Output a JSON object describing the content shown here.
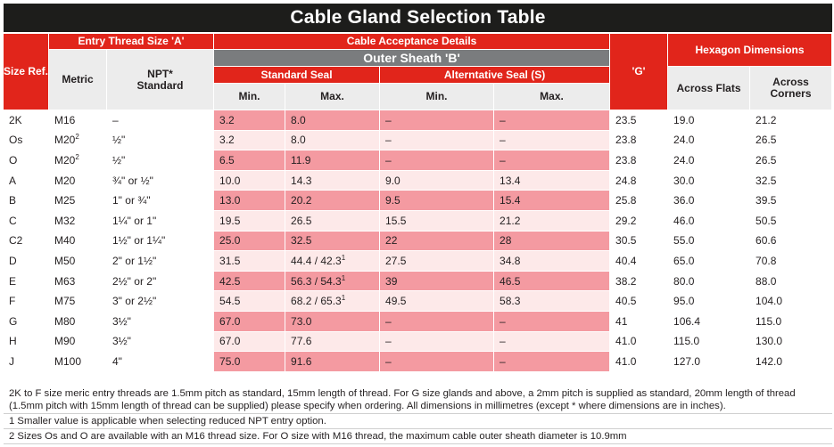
{
  "title": "Cable Gland Selection Table",
  "headers": {
    "size_ref": "Size Ref.",
    "entry_thread": "Entry Thread Size 'A'",
    "metric": "Metric",
    "npt": "NPT*",
    "npt_sub": "Standard",
    "cable_acceptance": "Cable Acceptance Details",
    "outer_sheath": "Outer Sheath 'B'",
    "standard_seal": "Standard Seal",
    "alternative_seal": "Alterntative Seal (S)",
    "min": "Min.",
    "max": "Max.",
    "g": "'G'",
    "hexagon": "Hexagon Dimensions",
    "across_flats": "Across Flats",
    "across_corners": "Across",
    "across_corners_2": "Corners"
  },
  "rows": [
    {
      "size": "2K",
      "metric": "M16",
      "metric_sup": "",
      "npt": "–",
      "std_min": "3.2",
      "std_max": "8.0",
      "std_max_sup": "",
      "alt_min": "–",
      "alt_max": "–",
      "g": "23.5",
      "af": "19.0",
      "ac": "21.2"
    },
    {
      "size": "Os",
      "metric": "M20",
      "metric_sup": "2",
      "npt": "½\"",
      "std_min": "3.2",
      "std_max": "8.0",
      "std_max_sup": "",
      "alt_min": "–",
      "alt_max": "–",
      "g": "23.8",
      "af": "24.0",
      "ac": "26.5"
    },
    {
      "size": "O",
      "metric": "M20",
      "metric_sup": "2",
      "npt": "½\"",
      "std_min": "6.5",
      "std_max": "11.9",
      "std_max_sup": "",
      "alt_min": "–",
      "alt_max": "–",
      "g": "23.8",
      "af": "24.0",
      "ac": "26.5"
    },
    {
      "size": "A",
      "metric": "M20",
      "metric_sup": "",
      "npt": "¾\" or ½\"",
      "std_min": "10.0",
      "std_max": "14.3",
      "std_max_sup": "",
      "alt_min": "9.0",
      "alt_max": "13.4",
      "g": "24.8",
      "af": "30.0",
      "ac": "32.5"
    },
    {
      "size": "B",
      "metric": "M25",
      "metric_sup": "",
      "npt": "1\" or ¾\"",
      "std_min": "13.0",
      "std_max": "20.2",
      "std_max_sup": "",
      "alt_min": "9.5",
      "alt_max": "15.4",
      "g": "25.8",
      "af": "36.0",
      "ac": "39.5"
    },
    {
      "size": "C",
      "metric": "M32",
      "metric_sup": "",
      "npt": "1¼\" or 1\"",
      "std_min": "19.5",
      "std_max": "26.5",
      "std_max_sup": "",
      "alt_min": "15.5",
      "alt_max": "21.2",
      "g": "29.2",
      "af": "46.0",
      "ac": "50.5"
    },
    {
      "size": "C2",
      "metric": "M40",
      "metric_sup": "",
      "npt": "1½\" or 1¼\"",
      "std_min": "25.0",
      "std_max": "32.5",
      "std_max_sup": "",
      "alt_min": "22",
      "alt_max": "28",
      "g": "30.5",
      "af": "55.0",
      "ac": "60.6"
    },
    {
      "size": "D",
      "metric": "M50",
      "metric_sup": "",
      "npt": "2\" or 1½\"",
      "std_min": "31.5",
      "std_max": "44.4 / 42.3",
      "std_max_sup": "1",
      "alt_min": "27.5",
      "alt_max": "34.8",
      "g": "40.4",
      "af": "65.0",
      "ac": "70.8"
    },
    {
      "size": "E",
      "metric": "M63",
      "metric_sup": "",
      "npt": "2½\" or 2\"",
      "std_min": "42.5",
      "std_max": "56.3 / 54.3",
      "std_max_sup": "1",
      "alt_min": "39",
      "alt_max": "46.5",
      "g": "38.2",
      "af": "80.0",
      "ac": "88.0"
    },
    {
      "size": "F",
      "metric": "M75",
      "metric_sup": "",
      "npt": "3\" or 2½\"",
      "std_min": "54.5",
      "std_max": "68.2 / 65.3",
      "std_max_sup": "1",
      "alt_min": "49.5",
      "alt_max": "58.3",
      "g": "40.5",
      "af": "95.0",
      "ac": "104.0"
    },
    {
      "size": "G",
      "metric": "M80",
      "metric_sup": "",
      "npt": "3½\"",
      "std_min": "67.0",
      "std_max": "73.0",
      "std_max_sup": "",
      "alt_min": "–",
      "alt_max": "–",
      "g": "41",
      "af": "106.4",
      "ac": "115.0"
    },
    {
      "size": "H",
      "metric": "M90",
      "metric_sup": "",
      "npt": "3½\"",
      "std_min": "67.0",
      "std_max": "77.6",
      "std_max_sup": "",
      "alt_min": "–",
      "alt_max": "–",
      "g": "41.0",
      "af": "115.0",
      "ac": "130.0"
    },
    {
      "size": "J",
      "metric": "M100",
      "metric_sup": "",
      "npt": "4\"",
      "std_min": "75.0",
      "std_max": "91.6",
      "std_max_sup": "",
      "alt_min": "–",
      "alt_max": "–",
      "g": "41.0",
      "af": "127.0",
      "ac": "142.0"
    }
  ],
  "notes": {
    "main": "2K to F size meric entry threads are 1.5mm pitch as standard, 15mm length of thread. For G size glands and above, a 2mm pitch is supplied as standard, 20mm length of thread (1.5mm pitch with 15mm length of thread can be supplied) please specify when ordering. All dimensions in millimetres (except * where dimensions are in inches).",
    "fn1": "1 Smaller value is applicable when selecting reduced NPT entry option.",
    "fn2": "2 Sizes Os and O are available with an M16 thread size. For O size with M16 thread, the maximum cable outer sheath diameter is 10.9mm"
  },
  "colors": {
    "header_red": "#e1251b",
    "header_grey": "#7a7c7e",
    "title_bg": "#1d1d1b",
    "row_pink_dark": "#f49aa1",
    "row_pink_light": "#fde9e9"
  }
}
